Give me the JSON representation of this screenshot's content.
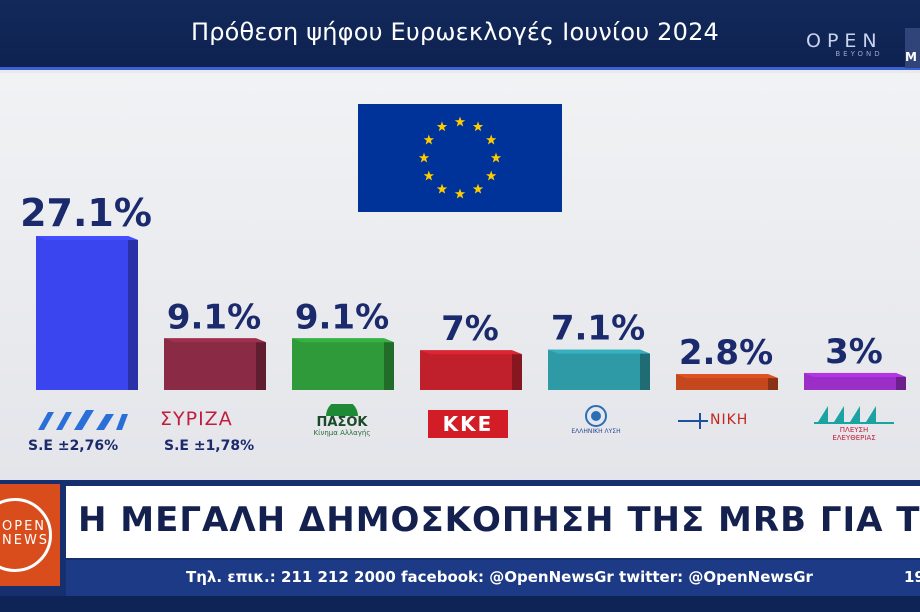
{
  "header": {
    "title": "Πρόθεση ψήφου Ευρωεκλογές Ιουνίου 2024",
    "channel_logo": "OPEN",
    "channel_sub": "BEYOND",
    "corner_badge": "M"
  },
  "chart_data": {
    "type": "bar",
    "title": "Πρόθεση ψήφου Ευρωεκλογές Ιουνίου 2024",
    "categories": [
      "ΝΔ",
      "ΣΥΡΙΖΑ",
      "ΠΑΣΟΚ",
      "ΚΚΕ",
      "ΕΛΛΗΝΙΚΗ ΛΥΣΗ",
      "ΝΙΚΗ",
      "ΠΛΕΥΣΗ ΕΛΕΥΘΕΡΙΑΣ"
    ],
    "values": [
      27.1,
      9.1,
      9.1,
      7,
      7.1,
      2.8,
      3
    ],
    "value_labels": [
      "27.1%",
      "9.1%",
      "9.1%",
      "7%",
      "7.1%",
      "2.8%",
      "3%"
    ],
    "colors": [
      "#3a45f0",
      "#8a2a44",
      "#2f9a3a",
      "#c0202c",
      "#2e9aa6",
      "#c4471e",
      "#9c2ec8"
    ],
    "xlabel": "",
    "ylabel": "",
    "ylim": [
      0,
      27.1
    ],
    "grid": false,
    "legend": "none"
  },
  "logos": {
    "nd": "",
    "syriza": "ΣΥΡΙΖΑ",
    "pasok": "ΠΑΣΟΚ",
    "pasok_sub": "Κίνημα Αλλαγής",
    "kke": "ΚΚΕ",
    "elliniki_lysi": "ΕΛΛΗΝΙΚΗ ΛΥΣΗ",
    "niki": "ΝΙΚΗ",
    "plefsi": "ΠΛΕΥΣΗ ΕΛΕΥΘΕΡΙΑΣ"
  },
  "errors": {
    "nd": "S.E ±2,76%",
    "syriza": "S.E ±1,78%"
  },
  "bottom": {
    "badge": "OPEN NEWS",
    "headline": "Η ΜΕΓΑΛΗ ΔΗΜΟΣΚΟΠΗΣΗ ΤΗΣ MRB ΓΙΑ ΤΟ OPEN",
    "ticker": "Τηλ. επικ.: 211 212 2000 facebook: @OpenNewsGr twitter: @OpenNewsGr",
    "time": "19"
  },
  "colors": {
    "header_bg": "#12295a",
    "accent": "#3b5fd6",
    "eu_blue": "#003399",
    "eu_gold": "#ffcc00",
    "value_text": "#1a2a6c",
    "open_news_orange": "#d94d1c"
  }
}
